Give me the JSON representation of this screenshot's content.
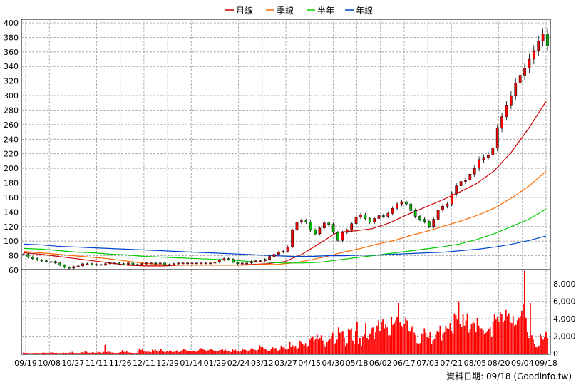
{
  "chart_data": [
    {
      "type": "line",
      "panel": "price",
      "legend_position": "top-center",
      "ylim": [
        60,
        400
      ],
      "y_ticks": [
        60,
        80,
        100,
        120,
        140,
        160,
        180,
        200,
        220,
        240,
        260,
        280,
        300,
        320,
        340,
        360,
        380,
        400
      ],
      "grid": true,
      "x_tick_labels": [
        "09/19",
        "10/08",
        "10/27",
        "11/11",
        "11/26",
        "12/11",
        "12/29",
        "01/14",
        "01/29",
        "02/24",
        "03/12",
        "03/27",
        "04/15",
        "04/30",
        "05/18",
        "06/02",
        "06/17",
        "07/03",
        "07/21",
        "08/05",
        "08/20",
        "09/04",
        "09/18"
      ],
      "series": [
        {
          "name": "月線",
          "color": "#cc0000",
          "values": [
            84,
            82,
            79,
            76,
            73,
            70,
            67,
            66,
            66,
            67,
            67,
            67,
            67,
            68,
            69,
            72,
            82,
            97,
            112,
            114,
            117,
            125,
            136,
            146,
            156,
            167,
            179,
            196,
            222,
            255,
            292
          ]
        },
        {
          "name": "季線",
          "color": "#ff6a00",
          "values": [
            86,
            84,
            82,
            80,
            78,
            76,
            73,
            70,
            68,
            67,
            67,
            67,
            67,
            67,
            68,
            68,
            70,
            74,
            79,
            85,
            90,
            96,
            101,
            108,
            114,
            121,
            128,
            136,
            146,
            160,
            176,
            196
          ]
        },
        {
          "name": "半年",
          "color": "#00cc00",
          "values": [
            90,
            89,
            87,
            85,
            84,
            82,
            81,
            79,
            78,
            77,
            76,
            75,
            74,
            72,
            71,
            70,
            70,
            71,
            74,
            77,
            80,
            83,
            86,
            89,
            92,
            96,
            102,
            110,
            120,
            130,
            144
          ]
        },
        {
          "name": "年線",
          "color": "#0044cc",
          "values": [
            96,
            95,
            93,
            92,
            91,
            90,
            89,
            88,
            87,
            86,
            85,
            84,
            83,
            82,
            81,
            80,
            79,
            79,
            80,
            80,
            81,
            81,
            82,
            83,
            84,
            85,
            87,
            89,
            92,
            96,
            101,
            107
          ]
        }
      ],
      "price_path": [
        82,
        78,
        76,
        74,
        73,
        72,
        72,
        70,
        67,
        64,
        63,
        65,
        66,
        69,
        69,
        68,
        68,
        67,
        69,
        70,
        70,
        69,
        68,
        70,
        68,
        68,
        69,
        70,
        70,
        69,
        70,
        67,
        68,
        69,
        70,
        70,
        70,
        70,
        70,
        70,
        70,
        70,
        71,
        74,
        76,
        75,
        71,
        69,
        70,
        70,
        72,
        73,
        73,
        75,
        79,
        82,
        85,
        86,
        92,
        115,
        126,
        128,
        126,
        115,
        110,
        118,
        125,
        123,
        112,
        101,
        112,
        115,
        124,
        133,
        136,
        131,
        126,
        131,
        135,
        134,
        138,
        145,
        151,
        154,
        151,
        142,
        134,
        130,
        127,
        120,
        130,
        143,
        148,
        151,
        165,
        176,
        182,
        184,
        192,
        200,
        212,
        215,
        218,
        228,
        255,
        271,
        287,
        300,
        317,
        328,
        338,
        350,
        362,
        375,
        385,
        368
      ]
    },
    {
      "type": "bar",
      "panel": "volume",
      "color": "#ff0000",
      "ylim": [
        0,
        9000
      ],
      "y_ticks": [
        0,
        2000,
        4000,
        6000,
        8000
      ],
      "y_tick_labels": [
        "0",
        "2,000",
        "4,000",
        "6,000",
        "8,000"
      ],
      "values": [
        120,
        80,
        90,
        60,
        50,
        40,
        50,
        60,
        80,
        60,
        90,
        60,
        40,
        80,
        120,
        90,
        60,
        100,
        80,
        150,
        120,
        100,
        80,
        90,
        60,
        60,
        50,
        70,
        100,
        80,
        80,
        50,
        120,
        100,
        200,
        80,
        60,
        70,
        90,
        60,
        120,
        150,
        100,
        300,
        200,
        120,
        100,
        80,
        150,
        120,
        90,
        80,
        200,
        150,
        120,
        90,
        200,
        1000,
        160,
        250,
        200,
        120,
        120,
        90,
        80,
        70,
        100,
        120,
        160,
        400,
        200,
        150,
        300,
        150,
        120,
        100,
        80,
        70,
        60,
        80,
        350,
        600,
        400,
        500,
        300,
        250,
        200,
        300,
        200,
        150,
        450,
        350,
        500,
        300,
        200,
        350,
        550,
        250,
        200,
        150,
        300,
        200,
        350,
        250,
        150,
        200,
        300,
        350,
        200,
        150,
        250,
        400,
        550,
        450,
        350,
        300,
        280,
        250,
        260,
        300,
        220,
        200,
        350,
        480,
        620,
        500,
        450,
        350,
        320,
        380,
        430,
        550,
        420,
        350,
        300,
        250,
        260,
        380,
        420,
        550,
        350,
        450,
        330,
        300,
        250,
        180,
        520,
        380,
        450,
        320,
        250,
        200,
        280,
        500,
        450,
        430,
        350,
        300,
        400,
        600,
        550,
        500,
        400,
        350,
        450,
        950,
        800,
        750,
        600,
        500,
        400,
        350,
        300,
        550,
        800,
        600,
        650,
        450,
        300,
        450,
        900,
        700,
        800,
        500,
        450,
        550,
        1400,
        800,
        950,
        700,
        900,
        550,
        650,
        1500,
        1300,
        1100,
        950,
        1200,
        800,
        900,
        1600,
        1800,
        2000,
        1500,
        1700,
        2200,
        1600,
        1800,
        2100,
        1500,
        1000,
        800,
        1300,
        1500,
        1700,
        2000,
        2400,
        1100,
        1200,
        1600,
        3000,
        2400,
        2500,
        2600,
        1800,
        900,
        1200,
        2800,
        2700,
        2900,
        1500,
        1100,
        2600,
        3600,
        1100,
        1800,
        900,
        2000,
        2300,
        3500,
        1800,
        1600,
        2300,
        2900,
        3000,
        1700,
        2500,
        3200,
        3800,
        2600,
        3600,
        3900,
        2900,
        3400,
        3000,
        2100,
        2100,
        4200,
        3300,
        3500,
        3800,
        4200,
        5800,
        3600,
        3200,
        3100,
        3400,
        4100,
        3800,
        2600,
        2600,
        3000,
        3200,
        2400,
        2100,
        1200,
        1100,
        1200,
        2300,
        2300,
        2900,
        2400,
        1900,
        1800,
        2500,
        1100,
        1500,
        1700,
        2200,
        2600,
        2500,
        3200,
        1500,
        2200,
        2500,
        3200,
        2900,
        2800,
        3500,
        2600,
        2300,
        4600,
        4400,
        3900,
        6000,
        3400,
        3100,
        4500,
        3200,
        3800,
        4600,
        2400,
        2800,
        3400,
        3700,
        3500,
        2500,
        4100,
        3200,
        2900,
        2900,
        2700,
        2200,
        2400,
        2600,
        2800,
        3000,
        1900,
        3700,
        4500,
        3900,
        4200,
        3600,
        4800,
        4500,
        3600,
        3800,
        5000,
        4300,
        4600,
        3600,
        3500,
        4300,
        3200,
        3300,
        3800,
        4100,
        4300,
        4900,
        5700,
        9500,
        4100,
        2500,
        1800,
        5800,
        2100,
        1600,
        1100,
        800,
        700,
        900,
        2300,
        2000,
        1600,
        1900,
        2500,
        1800
      ]
    }
  ],
  "source": {
    "label": "資料日期: 09/18",
    "site": "(Goodinfo.tw)"
  }
}
